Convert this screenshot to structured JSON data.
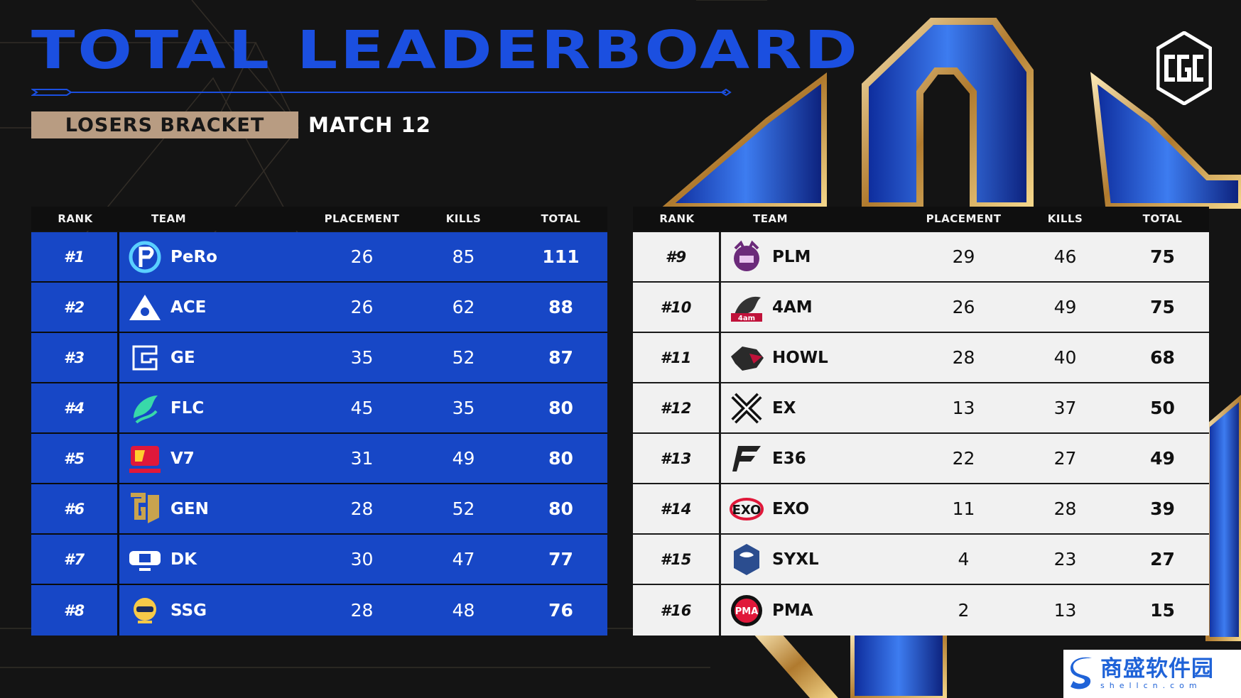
{
  "header": {
    "title": "TOTAL LEADERBOARD",
    "bracket": "LOSERS BRACKET",
    "match": "MATCH 12",
    "logo_text": "CGC"
  },
  "columns": {
    "rank": "RANK",
    "team": "TEAM",
    "placement": "PLACEMENT",
    "kills": "KILLS",
    "total": "TOTAL"
  },
  "colors": {
    "accent_blue": "#1b4fe0",
    "row_blue": "#1747c6",
    "badge_tan": "#b89c82",
    "row_light": "#f1f1f1"
  },
  "left_rows": [
    {
      "rank": "#1",
      "team": "PeRo",
      "placement": "26",
      "kills": "85",
      "total": "111",
      "logo": "pero-logo"
    },
    {
      "rank": "#2",
      "team": "ACE",
      "placement": "26",
      "kills": "62",
      "total": "88",
      "logo": "ace-logo"
    },
    {
      "rank": "#3",
      "team": "GE",
      "placement": "35",
      "kills": "52",
      "total": "87",
      "logo": "ge-logo"
    },
    {
      "rank": "#4",
      "team": "FLC",
      "placement": "45",
      "kills": "35",
      "total": "80",
      "logo": "flc-logo"
    },
    {
      "rank": "#5",
      "team": "V7",
      "placement": "31",
      "kills": "49",
      "total": "80",
      "logo": "v7-logo"
    },
    {
      "rank": "#6",
      "team": "GEN",
      "placement": "28",
      "kills": "52",
      "total": "80",
      "logo": "gen-logo"
    },
    {
      "rank": "#7",
      "team": "DK",
      "placement": "30",
      "kills": "47",
      "total": "77",
      "logo": "dk-logo"
    },
    {
      "rank": "#8",
      "team": "SSG",
      "placement": "28",
      "kills": "48",
      "total": "76",
      "logo": "ssg-logo"
    }
  ],
  "right_rows": [
    {
      "rank": "#9",
      "team": "PLM",
      "placement": "29",
      "kills": "46",
      "total": "75",
      "logo": "plm-logo"
    },
    {
      "rank": "#10",
      "team": "4AM",
      "placement": "26",
      "kills": "49",
      "total": "75",
      "logo": "4am-logo"
    },
    {
      "rank": "#11",
      "team": "HOWL",
      "placement": "28",
      "kills": "40",
      "total": "68",
      "logo": "howl-logo"
    },
    {
      "rank": "#12",
      "team": "EX",
      "placement": "13",
      "kills": "37",
      "total": "50",
      "logo": "ex-logo"
    },
    {
      "rank": "#13",
      "team": "E36",
      "placement": "22",
      "kills": "27",
      "total": "49",
      "logo": "e36-logo"
    },
    {
      "rank": "#14",
      "team": "EXO",
      "placement": "11",
      "kills": "28",
      "total": "39",
      "logo": "exo-logo"
    },
    {
      "rank": "#15",
      "team": "SYXL",
      "placement": "4",
      "kills": "23",
      "total": "27",
      "logo": "syxl-logo"
    },
    {
      "rank": "#16",
      "team": "PMA",
      "placement": "2",
      "kills": "13",
      "total": "15",
      "logo": "pma-logo"
    }
  ],
  "watermark": {
    "name": "商盛软件园",
    "url": "shellcn.com"
  }
}
